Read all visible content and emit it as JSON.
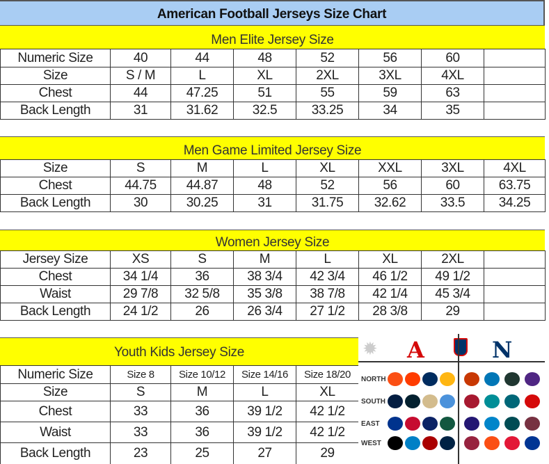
{
  "title": "American Football Jerseys Size Chart",
  "colors": {
    "title_bg": "#a9cdf3",
    "section_bg": "#ffff00",
    "afc": "#d50a0a",
    "nfc": "#013369"
  },
  "men_elite": {
    "heading": "Men Elite Jersey Size",
    "rows": [
      [
        "Numeric Size",
        "40",
        "44",
        "48",
        "52",
        "56",
        "60",
        ""
      ],
      [
        "Size",
        "S / M",
        "L",
        "XL",
        "2XL",
        "3XL",
        "4XL",
        ""
      ],
      [
        "Chest",
        "44",
        "47.25",
        "51",
        "55",
        "59",
        "63",
        ""
      ],
      [
        "Back Length",
        "31",
        "31.62",
        "32.5",
        "33.25",
        "34",
        "35",
        ""
      ]
    ]
  },
  "men_game": {
    "heading": "Men Game Limited Jersey Size",
    "rows": [
      [
        "Size",
        "S",
        "M",
        "L",
        "XL",
        "XXL",
        "3XL",
        "4XL"
      ],
      [
        "Chest",
        "44.75",
        "44.87",
        "48",
        "52",
        "56",
        "60",
        "63.75"
      ],
      [
        "Back Length",
        "30",
        "30.25",
        "31",
        "31.75",
        "32.62",
        "33.5",
        "34.25"
      ]
    ]
  },
  "women": {
    "heading": "Women Jersey Size",
    "rows": [
      [
        "Jersey Size",
        "XS",
        "S",
        "M",
        "L",
        "XL",
        "2XL",
        ""
      ],
      [
        "Chest",
        "34 1/4",
        "36",
        "38 3/4",
        "42 3/4",
        "46 1/2",
        "49 1/2",
        ""
      ],
      [
        "Waist",
        "29 7/8",
        "32 5/8",
        "35 3/8",
        "38 7/8",
        "42 1/4",
        "45 3/4",
        ""
      ],
      [
        "Back Length",
        "24 1/2",
        "26",
        "26 3/4",
        "27 1/2",
        "28 3/8",
        "29",
        ""
      ]
    ]
  },
  "youth": {
    "heading": "Youth Kids Jersey Size",
    "rows": [
      [
        "Numeric Size",
        "Size 8",
        "Size 10/12",
        "Size 14/16",
        "Size 18/20"
      ],
      [
        "Size",
        "S",
        "M",
        "L",
        "XL"
      ],
      [
        "Chest",
        "33",
        "36",
        "39 1/2",
        "42 1/2"
      ],
      [
        "Waist",
        "33",
        "36",
        "39 1/2",
        "42 1/2"
      ],
      [
        "Back Length",
        "23",
        "25",
        "27",
        "29"
      ]
    ]
  },
  "logos": {
    "afc_letter": "A",
    "nfc_letter": "N",
    "divisions": [
      "NORTH",
      "SOUTH",
      "EAST",
      "WEST"
    ],
    "afc_team_colors": [
      [
        "#fb4f14",
        "#ff3c00",
        "#002c5f",
        "#ffb612"
      ],
      [
        "#041e42",
        "#03202f",
        "#d3bc8d",
        "#4b92db"
      ],
      [
        "#00338d",
        "#c60c30",
        "#0b2265",
        "#125740"
      ],
      [
        "#000000",
        "#0080c6",
        "#aa0000",
        "#002244"
      ]
    ],
    "nfc_team_colors": [
      [
        "#c83803",
        "#0076b6",
        "#203731",
        "#4f2683"
      ],
      [
        "#a71930",
        "#008e97",
        "#006778",
        "#d50a0a"
      ],
      [
        "#241773",
        "#0085ca",
        "#004c54",
        "#773141"
      ],
      [
        "#97233f",
        "#fb4f14",
        "#e31837",
        "#003594"
      ]
    ]
  }
}
